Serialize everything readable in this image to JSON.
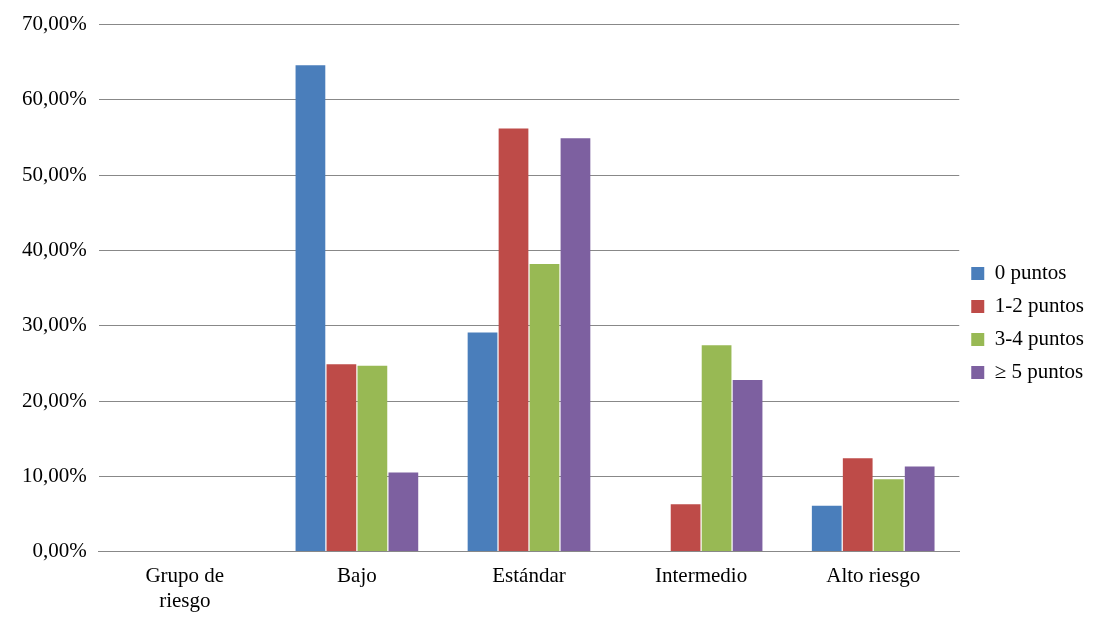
{
  "chart_data": {
    "type": "bar",
    "categories": [
      "Grupo de riesgo",
      "Bajo",
      "Estándar",
      "Intermedio",
      "Alto riesgo"
    ],
    "series": [
      {
        "name": "0 puntos",
        "color": "#4a7ebb",
        "values": [
          null,
          64.6,
          29.1,
          null,
          6.1
        ]
      },
      {
        "name": "1-2 puntos",
        "color": "#be4b48",
        "values": [
          null,
          24.9,
          56.2,
          6.3,
          12.4
        ]
      },
      {
        "name": "3-4 puntos",
        "color": "#98b954",
        "values": [
          null,
          24.7,
          38.2,
          27.4,
          9.6
        ]
      },
      {
        "name": "≥ 5 puntos",
        "color": "#7d60a0",
        "values": [
          null,
          10.5,
          54.9,
          22.8,
          11.3
        ]
      }
    ],
    "ylim": [
      0,
      70
    ],
    "yticks": [
      {
        "value": 0,
        "label": "0,00%"
      },
      {
        "value": 10,
        "label": "10,00%"
      },
      {
        "value": 20,
        "label": "20,00%"
      },
      {
        "value": 30,
        "label": "30,00%"
      },
      {
        "value": 40,
        "label": "40,00%"
      },
      {
        "value": 50,
        "label": "50,00%"
      },
      {
        "value": 60,
        "label": "60,00%"
      },
      {
        "value": 70,
        "label": "70,00%"
      }
    ],
    "grid": "y",
    "legend": "right"
  }
}
